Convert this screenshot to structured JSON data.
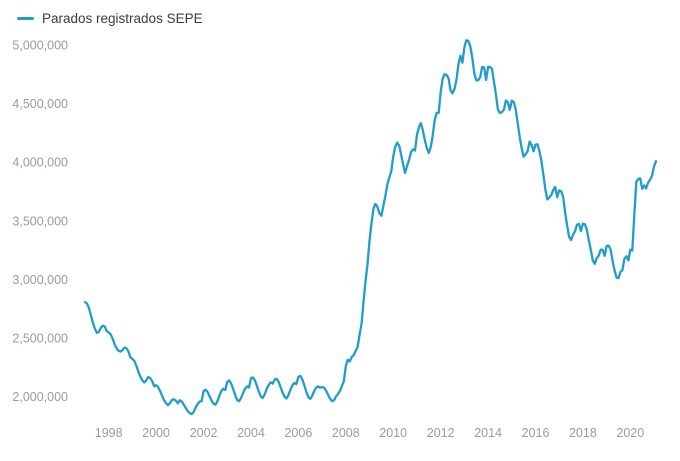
{
  "legend": {
    "items": [
      {
        "label": "Parados registrados SEPE",
        "color": "#219dca"
      }
    ]
  },
  "colors": {
    "line": "#219dca",
    "axis_label": "#9b9b9b",
    "legend_text": "#3b3b3b",
    "background": "#ffffff"
  },
  "chart_data": {
    "type": "line",
    "title": "Parados registrados SEPE",
    "frequency": "monthly",
    "x_start": "1997-01",
    "x_end": "2021-02",
    "grid": false,
    "legend_position": "top-left",
    "ylim": [
      1760000,
      5100000
    ],
    "y_ticks": [
      {
        "value": 5000000,
        "label": "5,000,000"
      },
      {
        "value": 4500000,
        "label": "4,500,000"
      },
      {
        "value": 4000000,
        "label": "4,000,000"
      },
      {
        "value": 3500000,
        "label": "3,500,000"
      },
      {
        "value": 3000000,
        "label": "3,000,000"
      },
      {
        "value": 2500000,
        "label": "2,500,000"
      },
      {
        "value": 2000000,
        "label": "2,000,000"
      }
    ],
    "x_ticks": [
      {
        "value": 1998,
        "label": "1998"
      },
      {
        "value": 2000,
        "label": "2000"
      },
      {
        "value": 2002,
        "label": "2002"
      },
      {
        "value": 2004,
        "label": "2004"
      },
      {
        "value": 2006,
        "label": "2006"
      },
      {
        "value": 2008,
        "label": "2008"
      },
      {
        "value": 2010,
        "label": "2010"
      },
      {
        "value": 2012,
        "label": "2012"
      },
      {
        "value": 2014,
        "label": "2014"
      },
      {
        "value": 2016,
        "label": "2016"
      },
      {
        "value": 2018,
        "label": "2018"
      },
      {
        "value": 2020,
        "label": "2020"
      }
    ],
    "series": [
      {
        "name": "Parados registrados SEPE",
        "color": "#219dca",
        "start_year": 1997,
        "values": [
          2806000,
          2795000,
          2755000,
          2695000,
          2630000,
          2580000,
          2545000,
          2552000,
          2588000,
          2606000,
          2598000,
          2560000,
          2548000,
          2532000,
          2494000,
          2447000,
          2412000,
          2392000,
          2385000,
          2398000,
          2420000,
          2412000,
          2385000,
          2335000,
          2323000,
          2305000,
          2263000,
          2215000,
          2172000,
          2140000,
          2122000,
          2140000,
          2168000,
          2160000,
          2132000,
          2090000,
          2098000,
          2083000,
          2048000,
          2008000,
          1972000,
          1945000,
          1928000,
          1945000,
          1972000,
          1978000,
          1966000,
          1944000,
          1970000,
          1958000,
          1932000,
          1902000,
          1878000,
          1860000,
          1852000,
          1870000,
          1908000,
          1938000,
          1958000,
          1963000,
          2048000,
          2060000,
          2042000,
          2005000,
          1968000,
          1942000,
          1932000,
          1960000,
          2008000,
          2048000,
          2068000,
          2058000,
          2128000,
          2138000,
          2112000,
          2065000,
          2015000,
          1972000,
          1962000,
          1990000,
          2032000,
          2068000,
          2088000,
          2078000,
          2158000,
          2165000,
          2140000,
          2092000,
          2042000,
          2002000,
          1990000,
          2022000,
          2068000,
          2102000,
          2122000,
          2112000,
          2148000,
          2152000,
          2128000,
          2082000,
          2034000,
          2000000,
          1985000,
          2015000,
          2062000,
          2098000,
          2118000,
          2108000,
          2170000,
          2178000,
          2148000,
          2098000,
          2042000,
          1998000,
          1982000,
          2008000,
          2048000,
          2078000,
          2088000,
          2078000,
          2082000,
          2078000,
          2052000,
          2018000,
          1985000,
          1962000,
          1970000,
          2000000,
          2022000,
          2048000,
          2092000,
          2130000,
          2261925,
          2315331,
          2300975,
          2338517,
          2353575,
          2390424,
          2426916,
          2530001,
          2625368,
          2818026,
          2989269,
          3128963,
          3327801,
          3481859,
          3605402,
          3644880,
          3620139,
          3564889,
          3544095,
          3629080,
          3709447,
          3808353,
          3868946,
          3923603,
          4048493,
          4130625,
          4166613,
          4142425,
          4066202,
          3982368,
          3908578,
          3969661,
          4017763,
          4085976,
          4110294,
          4100073,
          4231003,
          4299263,
          4333669,
          4269360,
          4189659,
          4121801,
          4079742,
          4130927,
          4226744,
          4360926,
          4420462,
          4422359,
          4599829,
          4712098,
          4750867,
          4744235,
          4714122,
          4615269,
          4587455,
          4625634,
          4705279,
          4833521,
          4907817,
          4848723,
          4980778,
          5040222,
          5035243,
          4989193,
          4890928,
          4763680,
          4698814,
          4698783,
          4724355,
          4811383,
          4808908,
          4701338,
          4814435,
          4812486,
          4795866,
          4684301,
          4572385,
          4449701,
          4419860,
          4427930,
          4447650,
          4526804,
          4512116,
          4447711,
          4525691,
          4512153,
          4451939,
          4333016,
          4215031,
          4120304,
          4046276,
          4067955,
          4094042,
          4176369,
          4149298,
          4093508,
          4150755,
          4152986,
          4094770,
          4011171,
          3891403,
          3767054,
          3683061,
          3697496,
          3720297,
          3764982,
          3789823,
          3702974,
          3760231,
          3750876,
          3702317,
          3573036,
          3461128,
          3362811,
          3335924,
          3382324,
          3410182,
          3467026,
          3474281,
          3412781,
          3476528,
          3470248,
          3422551,
          3335868,
          3252130,
          3162162,
          3132844,
          3182540,
          3202509,
          3254703,
          3252867,
          3202297,
          3285761,
          3289040,
          3255084,
          3163566,
          3079491,
          3015686,
          3011433,
          3065804,
          3079711,
          3177659,
          3198184,
          3163605,
          3253853,
          3246047,
          3548312,
          3831203,
          3857776,
          3862883,
          3773034,
          3802814,
          3776485,
          3826043,
          3851312,
          3888137,
          3964353,
          4008789
        ]
      }
    ]
  }
}
